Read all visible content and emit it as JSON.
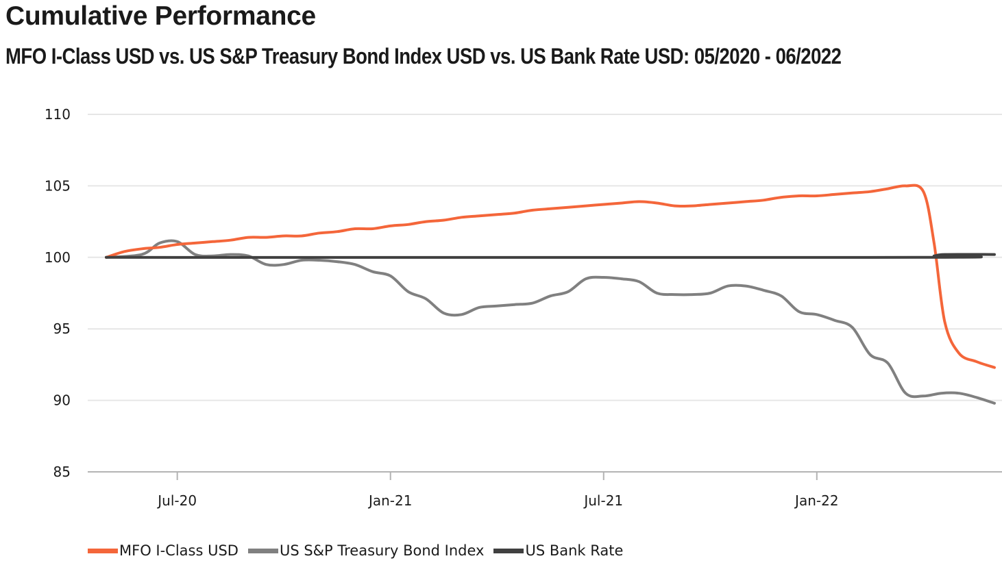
{
  "title": "Cumulative Performance",
  "subtitle": "MFO I-Class USD vs. US S&P Treasury Bond Index USD vs. US Bank Rate USD: 05/2020 - 06/2022",
  "chart_data": {
    "type": "line",
    "title": "Cumulative Performance",
    "subtitle": "MFO I-Class USD vs. US S&P Treasury Bond Index USD vs. US Bank Rate USD: 05/2020 - 06/2022",
    "xlabel": "",
    "ylabel": "",
    "x_range_months": [
      0,
      25
    ],
    "ylim": [
      85,
      110
    ],
    "y_ticks": [
      110,
      105,
      100,
      95,
      90,
      85
    ],
    "x_ticks": [
      {
        "label": "Jul-20",
        "month": 2
      },
      {
        "label": "Jan-21",
        "month": 8
      },
      {
        "label": "Jul-21",
        "month": 14
      },
      {
        "label": "Jan-22",
        "month": 20
      }
    ],
    "grid": "horizontal",
    "legend_position": "bottom-left",
    "series": [
      {
        "name": "MFO I-Class USD",
        "color": "#F4663A",
        "points": [
          [
            0,
            100.0
          ],
          [
            0.5,
            100.4
          ],
          [
            1,
            100.6
          ],
          [
            1.5,
            100.7
          ],
          [
            2,
            100.9
          ],
          [
            2.5,
            101.0
          ],
          [
            3,
            101.1
          ],
          [
            3.5,
            101.2
          ],
          [
            4,
            101.4
          ],
          [
            4.5,
            101.4
          ],
          [
            5,
            101.5
          ],
          [
            5.5,
            101.5
          ],
          [
            6,
            101.7
          ],
          [
            6.5,
            101.8
          ],
          [
            7,
            102.0
          ],
          [
            7.5,
            102.0
          ],
          [
            8,
            102.2
          ],
          [
            8.5,
            102.3
          ],
          [
            9,
            102.5
          ],
          [
            9.5,
            102.6
          ],
          [
            10,
            102.8
          ],
          [
            10.5,
            102.9
          ],
          [
            11,
            103.0
          ],
          [
            11.5,
            103.1
          ],
          [
            12,
            103.3
          ],
          [
            12.5,
            103.4
          ],
          [
            13,
            103.5
          ],
          [
            13.5,
            103.6
          ],
          [
            14,
            103.7
          ],
          [
            14.5,
            103.8
          ],
          [
            15,
            103.9
          ],
          [
            15.5,
            103.8
          ],
          [
            16,
            103.6
          ],
          [
            16.5,
            103.6
          ],
          [
            17,
            103.7
          ],
          [
            17.5,
            103.8
          ],
          [
            18,
            103.9
          ],
          [
            18.5,
            104.0
          ],
          [
            19,
            104.2
          ],
          [
            19.5,
            104.3
          ],
          [
            20,
            104.3
          ],
          [
            20.5,
            104.4
          ],
          [
            21,
            104.5
          ],
          [
            21.5,
            104.6
          ],
          [
            22,
            104.8
          ],
          [
            22.5,
            105.0
          ],
          [
            23,
            104.6
          ],
          [
            23.3,
            101.0
          ],
          [
            23.6,
            95.5
          ],
          [
            24,
            93.3
          ],
          [
            24.5,
            92.7
          ],
          [
            25,
            92.3
          ]
        ]
      },
      {
        "name": "US S&P Treasury Bond Index",
        "color": "#808080",
        "points": [
          [
            0,
            100.0
          ],
          [
            1,
            100.2
          ],
          [
            1.5,
            101.0
          ],
          [
            2,
            101.1
          ],
          [
            2.5,
            100.2
          ],
          [
            3,
            100.1
          ],
          [
            3.5,
            100.2
          ],
          [
            4,
            100.1
          ],
          [
            4.5,
            99.5
          ],
          [
            5,
            99.5
          ],
          [
            5.5,
            99.8
          ],
          [
            6,
            99.8
          ],
          [
            6.5,
            99.7
          ],
          [
            7,
            99.5
          ],
          [
            7.5,
            99.0
          ],
          [
            8,
            98.7
          ],
          [
            8.5,
            97.6
          ],
          [
            9,
            97.1
          ],
          [
            9.5,
            96.1
          ],
          [
            10,
            96.0
          ],
          [
            10.5,
            96.5
          ],
          [
            11,
            96.6
          ],
          [
            11.5,
            96.7
          ],
          [
            12,
            96.8
          ],
          [
            12.5,
            97.3
          ],
          [
            13,
            97.6
          ],
          [
            13.5,
            98.5
          ],
          [
            14,
            98.6
          ],
          [
            14.5,
            98.5
          ],
          [
            15,
            98.3
          ],
          [
            15.5,
            97.5
          ],
          [
            16,
            97.4
          ],
          [
            16.5,
            97.4
          ],
          [
            17,
            97.5
          ],
          [
            17.5,
            98.0
          ],
          [
            18,
            98.0
          ],
          [
            18.5,
            97.7
          ],
          [
            19,
            97.3
          ],
          [
            19.5,
            96.2
          ],
          [
            20,
            96.0
          ],
          [
            20.5,
            95.6
          ],
          [
            21,
            95.1
          ],
          [
            21.5,
            93.2
          ],
          [
            22,
            92.6
          ],
          [
            22.5,
            90.5
          ],
          [
            23,
            90.3
          ],
          [
            23.5,
            90.5
          ],
          [
            24,
            90.5
          ],
          [
            24.5,
            90.2
          ],
          [
            25,
            89.8
          ]
        ]
      },
      {
        "name": "US Bank Rate",
        "color": "#404040",
        "points": [
          [
            0,
            100.0
          ],
          [
            22.8,
            100.0
          ],
          [
            23.3,
            100.1
          ],
          [
            23.6,
            100.2
          ],
          [
            25,
            100.2
          ]
        ]
      }
    ]
  }
}
